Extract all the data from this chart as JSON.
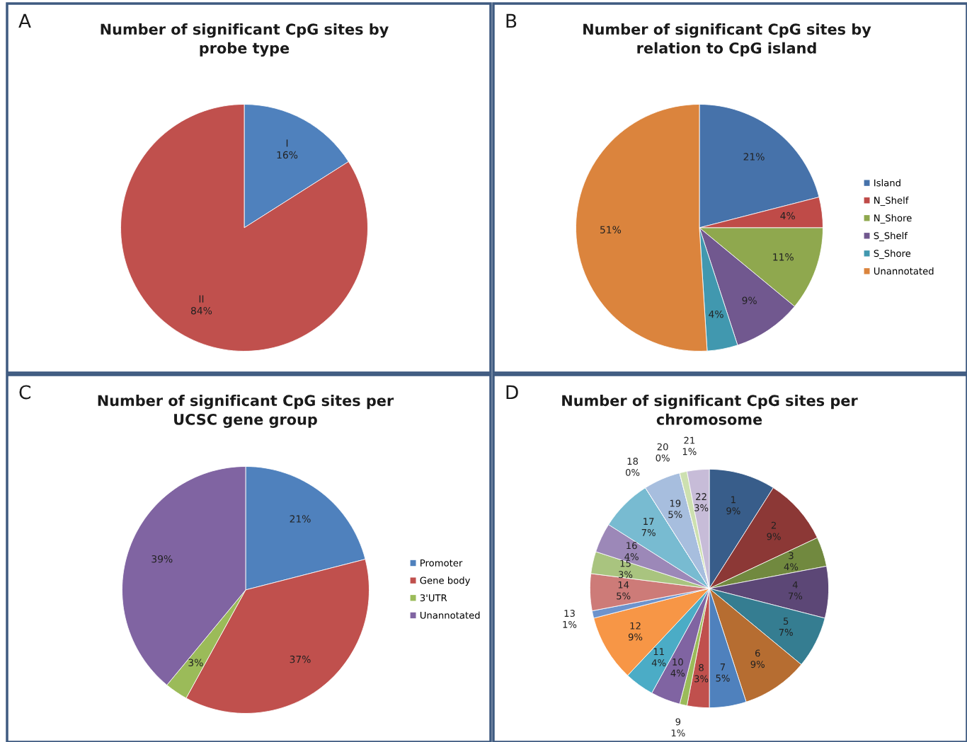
{
  "chart_data": [
    {
      "type": "pie",
      "title": "Number of significant CpG sites by\nprobe type",
      "annotations": [
        "A"
      ],
      "categories": [
        "I",
        "II"
      ],
      "values": [
        16,
        84
      ],
      "value_labels": [
        "16%",
        "84%"
      ],
      "colors": [
        "#4f81bd",
        "#c0504d"
      ],
      "legend": false
    },
    {
      "type": "pie",
      "title": "Number of significant CpG sites by\nrelation to CpG island",
      "annotations": [
        "B"
      ],
      "categories": [
        "Island",
        "N_Shelf",
        "N_Shore",
        "S_Shelf",
        "S_Shore",
        "Unannotated"
      ],
      "values": [
        21,
        4,
        11,
        9,
        4,
        51
      ],
      "value_labels": [
        "21%",
        "4%",
        "11%",
        "9%",
        "4%",
        "51%"
      ],
      "colors": [
        "#4672aa",
        "#bf4b48",
        "#8fa84e",
        "#71588f",
        "#4198af",
        "#db843d"
      ],
      "legend": "right"
    },
    {
      "type": "pie",
      "title": "Number of significant CpG sites per\nUCSC gene group",
      "annotations": [
        "C"
      ],
      "categories": [
        "Promoter",
        "Gene body",
        "3'UTR",
        "Unannotated"
      ],
      "values": [
        21,
        37,
        3,
        39
      ],
      "value_labels": [
        "21%",
        "37%",
        "3%",
        "39%"
      ],
      "colors": [
        "#4f81bd",
        "#c0504d",
        "#9bbb59",
        "#8064a2"
      ],
      "legend": "right"
    },
    {
      "type": "pie",
      "title": "Number of significant CpG sites per\nchromosome",
      "annotations": [
        "D"
      ],
      "categories": [
        "1",
        "2",
        "3",
        "4",
        "5",
        "6",
        "7",
        "8",
        "9",
        "10",
        "11",
        "12",
        "13",
        "14",
        "15",
        "16",
        "17",
        "18",
        "19",
        "20",
        "21",
        "22"
      ],
      "values": [
        9,
        9,
        4,
        7,
        7,
        9,
        5,
        3,
        1,
        4,
        4,
        9,
        1,
        5,
        3,
        4,
        7,
        0,
        5,
        0,
        1,
        3
      ],
      "value_labels": [
        "9%",
        "9%",
        "4%",
        "7%",
        "7%",
        "9%",
        "5%",
        "3%",
        "1%",
        "4%",
        "4%",
        "9%",
        "1%",
        "5%",
        "3%",
        "4%",
        "7%",
        "0%",
        "5%",
        "0%",
        "1%",
        "3%"
      ],
      "colors": [
        "#385d8a",
        "#8c3836",
        "#71893f",
        "#5c4776",
        "#357d91",
        "#b66d31",
        "#4f81bd",
        "#c0504d",
        "#9bbb59",
        "#8064a2",
        "#4bacc6",
        "#f79646",
        "#6d93cc",
        "#cd7b78",
        "#a9c47f",
        "#9c88b8",
        "#78bbd1",
        "#fac090",
        "#a7bede",
        "#e6b9b8",
        "#cde0b0",
        "#c7bcd8"
      ],
      "legend": false
    }
  ]
}
